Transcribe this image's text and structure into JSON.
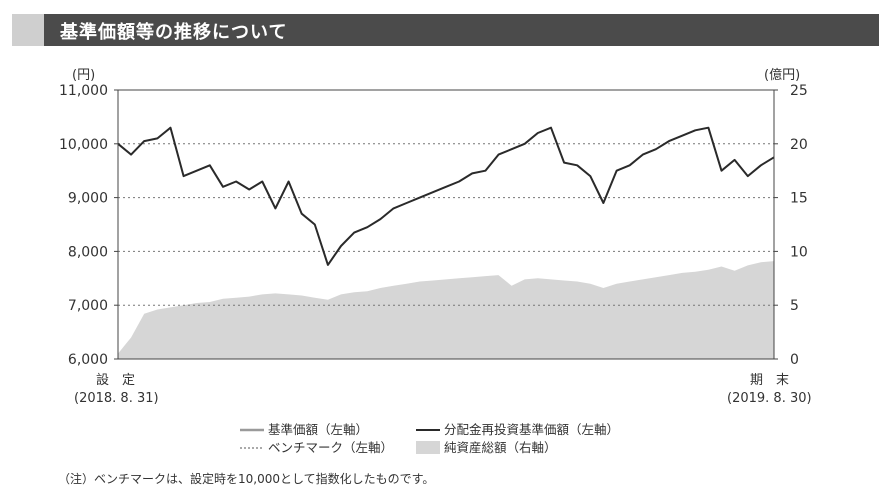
{
  "header": {
    "title": "基準価額等の推移について"
  },
  "footnote": "（注）ベンチマークは、設定時を10,000として指数化したものです。",
  "chart_data": {
    "type": "line",
    "left_axis": {
      "unit": "(円)",
      "ylim": [
        6000,
        11000
      ],
      "ticks": [
        "6,000",
        "7,000",
        "8,000",
        "9,000",
        "10,000",
        "11,000"
      ],
      "tick_values": [
        6000,
        7000,
        8000,
        9000,
        10000,
        11000
      ]
    },
    "right_axis": {
      "unit": "(億円)",
      "ylim": [
        0,
        25
      ],
      "ticks": [
        "0",
        "5",
        "10",
        "15",
        "20",
        "25"
      ],
      "tick_values": [
        0,
        5,
        10,
        15,
        20,
        25
      ]
    },
    "grid": "dotted horizontal at left-axis ticks",
    "x_labels": {
      "start": {
        "label": "設　定",
        "date": "(2018. 8. 31)"
      },
      "end": {
        "label": "期　末",
        "date": "(2019. 8. 30)"
      }
    },
    "x": [
      "2018-08-31",
      "2018-09-14",
      "2018-09-28",
      "2018-10-05",
      "2018-10-12",
      "2018-10-19",
      "2018-10-26",
      "2018-11-02",
      "2018-11-09",
      "2018-11-16",
      "2018-11-23",
      "2018-11-30",
      "2018-12-07",
      "2018-12-14",
      "2018-12-21",
      "2018-12-25",
      "2019-01-04",
      "2019-01-11",
      "2019-01-18",
      "2019-01-25",
      "2019-02-01",
      "2019-02-08",
      "2019-02-15",
      "2019-02-22",
      "2019-03-01",
      "2019-03-08",
      "2019-03-15",
      "2019-03-22",
      "2019-03-29",
      "2019-04-05",
      "2019-04-12",
      "2019-04-19",
      "2019-04-26",
      "2019-05-03",
      "2019-05-10",
      "2019-05-17",
      "2019-05-24",
      "2019-05-31",
      "2019-06-07",
      "2019-06-14",
      "2019-06-21",
      "2019-06-28",
      "2019-07-05",
      "2019-07-12",
      "2019-07-19",
      "2019-07-26",
      "2019-08-02",
      "2019-08-09",
      "2019-08-16",
      "2019-08-23",
      "2019-08-30"
    ],
    "series": [
      {
        "name": "分配金再投資基準価額（左軸）",
        "axis": "left",
        "color": "#2a2a2a",
        "values": [
          10000,
          9800,
          10050,
          10100,
          10300,
          9400,
          9500,
          9600,
          9200,
          9300,
          9150,
          9300,
          8800,
          9300,
          8700,
          8500,
          7750,
          8100,
          8350,
          8450,
          8600,
          8800,
          8900,
          9000,
          9100,
          9200,
          9300,
          9450,
          9500,
          9800,
          9900,
          10000,
          10200,
          10300,
          9650,
          9600,
          9400,
          8900,
          9500,
          9600,
          9800,
          9900,
          10050,
          10150,
          10250,
          10300,
          9500,
          9700,
          9400,
          9600,
          9750
        ]
      },
      {
        "name": "純資産総額（右軸）",
        "axis": "right",
        "color": "#d6d6d6",
        "values": [
          0.5,
          2.0,
          4.2,
          4.6,
          4.8,
          5.0,
          5.2,
          5.3,
          5.6,
          5.7,
          5.8,
          6.0,
          6.1,
          6.0,
          5.9,
          5.7,
          5.5,
          6.0,
          6.2,
          6.3,
          6.6,
          6.8,
          7.0,
          7.2,
          7.3,
          7.4,
          7.5,
          7.6,
          7.7,
          7.8,
          6.8,
          7.4,
          7.5,
          7.4,
          7.3,
          7.2,
          7.0,
          6.6,
          7.0,
          7.2,
          7.4,
          7.6,
          7.8,
          8.0,
          8.1,
          8.3,
          8.6,
          8.2,
          8.7,
          9.0,
          9.1
        ]
      }
    ],
    "legend": [
      {
        "name": "基準価額（左軸）",
        "style": "solid-gray"
      },
      {
        "name": "分配金再投資基準価額（左軸）",
        "style": "solid-dark"
      },
      {
        "name": "ベンチマーク（左軸）",
        "style": "dotted"
      },
      {
        "name": "純資産総額（右軸）",
        "style": "area-gray"
      }
    ],
    "legend_position": "bottom-center"
  }
}
